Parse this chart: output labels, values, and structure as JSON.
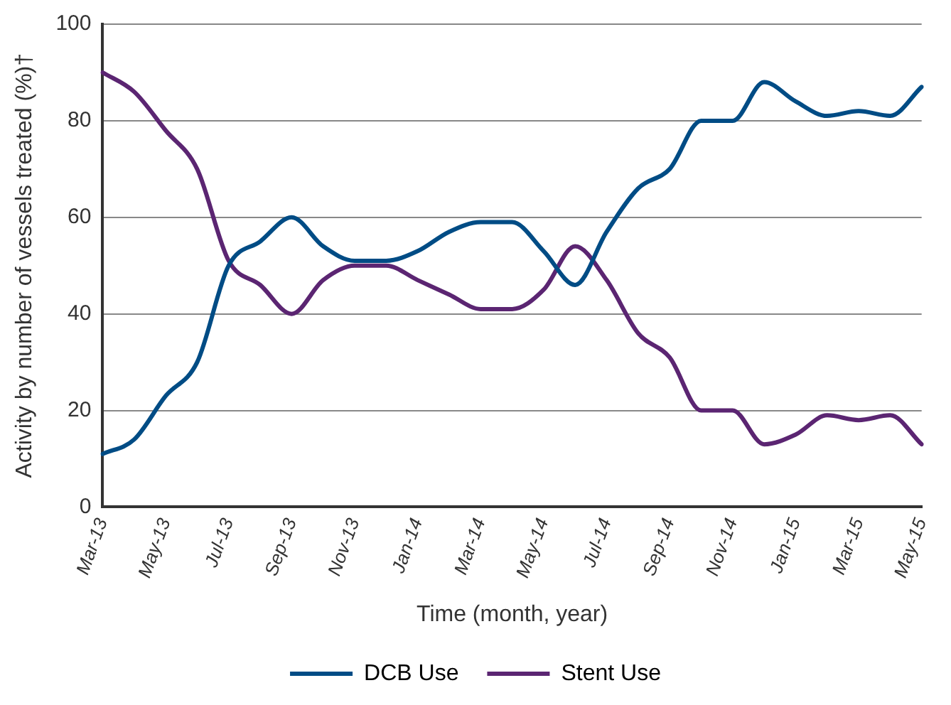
{
  "chart_data": {
    "type": "line",
    "ylabel": "Activity by number of vessels treated (%)†",
    "xlabel": "Time (month, year)",
    "categories": [
      "Mar-13",
      null,
      "May-13",
      null,
      "Jul-13",
      null,
      "Sep-13",
      null,
      "Nov-13",
      null,
      "Jan-14",
      null,
      "Mar-14",
      null,
      "May-14",
      null,
      "Jul-14",
      null,
      "Sep-14",
      null,
      "Nov-14",
      null,
      "Jan-15",
      null,
      "Mar-15",
      null,
      "May-15"
    ],
    "series": [
      {
        "name": "DCB Use",
        "color": "#004c85",
        "values": [
          11,
          14,
          23,
          30,
          50,
          55,
          60,
          54,
          51,
          51,
          53,
          57,
          59,
          59,
          53,
          46,
          57,
          66,
          70,
          80,
          80,
          88,
          84,
          81,
          82,
          81,
          87
        ]
      },
      {
        "name": "Stent Use",
        "color": "#5b2572",
        "values": [
          90,
          86,
          78,
          70,
          51,
          46,
          40,
          47,
          50,
          50,
          47,
          44,
          41,
          41,
          45,
          54,
          47,
          36,
          31,
          20,
          20,
          13,
          15,
          19,
          18,
          19,
          13
        ]
      }
    ],
    "ylim": [
      0,
      100
    ],
    "yticks": [
      0,
      20,
      40,
      60,
      80,
      100
    ],
    "grid": "y",
    "legend": "bottom",
    "line_style": "solid",
    "marker": "none"
  }
}
